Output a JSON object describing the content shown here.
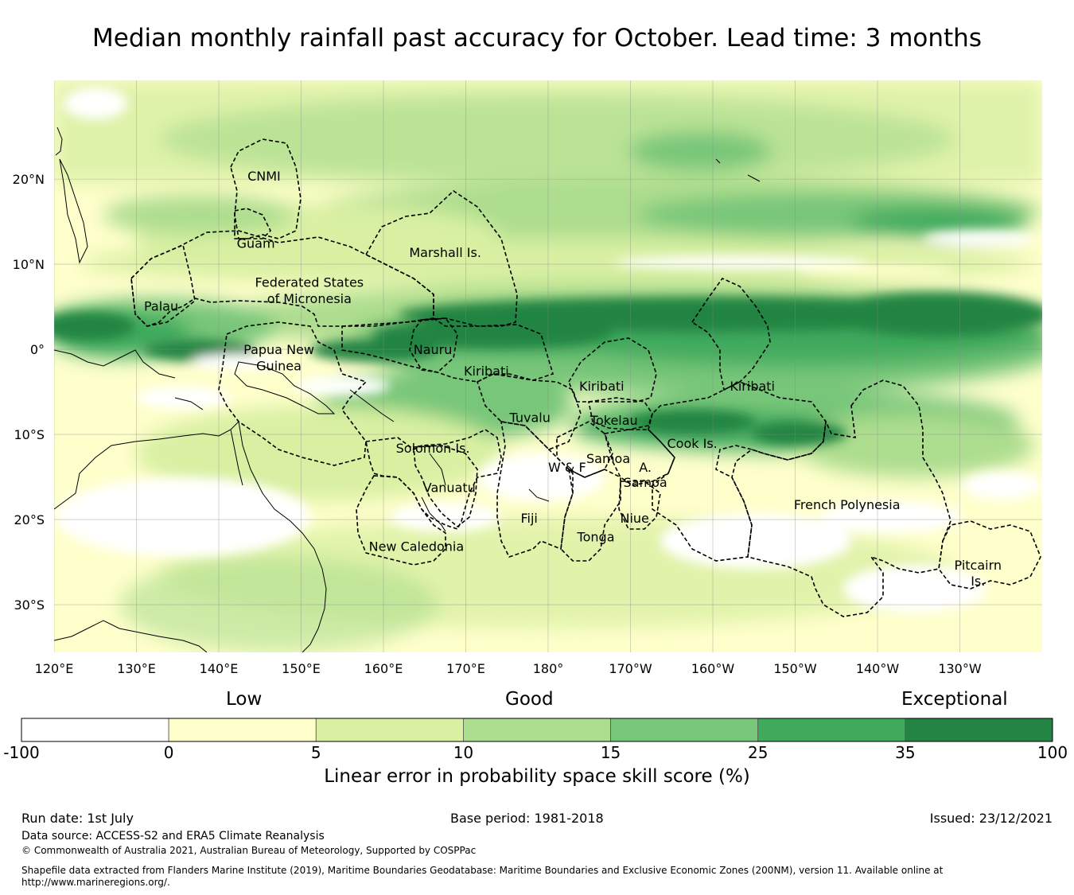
{
  "title": "Median monthly rainfall past accuracy for October. Lead time: 3 months",
  "map": {
    "lat_labels": [
      {
        "text": "20°N",
        "lat": 20
      },
      {
        "text": "10°N",
        "lat": 10
      },
      {
        "text": "0°",
        "lat": 0
      },
      {
        "text": "10°S",
        "lat": -10
      },
      {
        "text": "20°S",
        "lat": -20
      },
      {
        "text": "30°S",
        "lat": -30
      }
    ],
    "lon_labels": [
      {
        "text": "120°E",
        "lon": 120
      },
      {
        "text": "130°E",
        "lon": 130
      },
      {
        "text": "140°E",
        "lon": 140
      },
      {
        "text": "150°E",
        "lon": 150
      },
      {
        "text": "160°E",
        "lon": 160
      },
      {
        "text": "170°E",
        "lon": 170
      },
      {
        "text": "180°",
        "lon": 180
      },
      {
        "text": "170°W",
        "lon": 190
      },
      {
        "text": "160°W",
        "lon": 200
      },
      {
        "text": "150°W",
        "lon": 210
      },
      {
        "text": "140°W",
        "lon": 220
      },
      {
        "text": "130°W",
        "lon": 230
      }
    ],
    "regions": [
      {
        "name": "CNMI",
        "lon": 145.5,
        "lat": 20.4
      },
      {
        "name": "Guam",
        "lon": 144.5,
        "lat": 12.5
      },
      {
        "name": "Marshall Is.",
        "lon": 167.5,
        "lat": 11.4
      },
      {
        "name": "Federated States",
        "lon": 151,
        "lat": 7.9
      },
      {
        "name": "of Micronesia",
        "lon": 151,
        "lat": 6.0
      },
      {
        "name": "Palau",
        "lon": 133,
        "lat": 5.1
      },
      {
        "name": "Papua New",
        "lon": 147.3,
        "lat": 0.0
      },
      {
        "name": "Guinea",
        "lon": 147.3,
        "lat": -1.9
      },
      {
        "name": "Nauru",
        "lon": 166,
        "lat": 0.0
      },
      {
        "name": "Kiribati",
        "lon": 172.5,
        "lat": -2.5
      },
      {
        "name": "Kiribati",
        "lon": 186.5,
        "lat": -4.3
      },
      {
        "name": "Kiribati",
        "lon": 204.8,
        "lat": -4.3
      },
      {
        "name": "Tuvalu",
        "lon": 177.8,
        "lat": -8.0
      },
      {
        "name": "Tokelau",
        "lon": 188,
        "lat": -8.3
      },
      {
        "name": "Cook Is.",
        "lon": 197.5,
        "lat": -11.0
      },
      {
        "name": "Solomon Is.",
        "lon": 166,
        "lat": -11.6
      },
      {
        "name": "Samoa",
        "lon": 187.3,
        "lat": -12.8
      },
      {
        "name": "W & F",
        "lon": 182.3,
        "lat": -13.8
      },
      {
        "name": "A.",
        "lon": 191.8,
        "lat": -13.8
      },
      {
        "name": "Samoa",
        "lon": 191.8,
        "lat": -15.6
      },
      {
        "name": "Vanuatu",
        "lon": 168,
        "lat": -16.2
      },
      {
        "name": "Fiji",
        "lon": 177.7,
        "lat": -19.8
      },
      {
        "name": "Niue",
        "lon": 190.5,
        "lat": -19.8
      },
      {
        "name": "French Polynesia",
        "lon": 216.3,
        "lat": -18.2
      },
      {
        "name": "Tonga",
        "lon": 185.8,
        "lat": -22.0
      },
      {
        "name": "New Caledonia",
        "lon": 164,
        "lat": -23.1
      },
      {
        "name": "Pitcairn",
        "lon": 232.2,
        "lat": -25.3
      },
      {
        "name": "Is.",
        "lon": 232.2,
        "lat": -27.2
      }
    ]
  },
  "colorbar": {
    "categories": [
      "Low",
      "Good",
      "Exceptional"
    ],
    "bins": [
      {
        "from": -100,
        "to": 0,
        "color": "#ffffff"
      },
      {
        "from": 0,
        "to": 5,
        "color": "#ffffcc"
      },
      {
        "from": 5,
        "to": 10,
        "color": "#d9f0a3"
      },
      {
        "from": 10,
        "to": 15,
        "color": "#addd8e"
      },
      {
        "from": 15,
        "to": 25,
        "color": "#78c679"
      },
      {
        "from": 25,
        "to": 35,
        "color": "#41ab5d"
      },
      {
        "from": 35,
        "to": 100,
        "color": "#238443"
      }
    ],
    "ticks": [
      "-100",
      "0",
      "5",
      "10",
      "15",
      "25",
      "35",
      "100"
    ],
    "label": "Linear error in probability space skill score (%)"
  },
  "footer": {
    "run_date": "Run date: 1st July",
    "base_period": "Base period: 1981-2018",
    "issued": "Issued: 23/12/2021",
    "data_source": "Data source: ACCESS-S2 and ERA5 Climate Reanalysis",
    "copyright": "© Commonwealth of Australia 2021, Australian Bureau of Meteorology, Supported by COSPPac",
    "shapefile_1": "Shapefile data extracted from Flanders Marine Institute (2019), Maritime Boundaries Geodatabase: Maritime Boundaries and Exclusive Economic Zones (200NM), version 11. Available online at",
    "shapefile_2": "http://www.marineregions.org/."
  }
}
